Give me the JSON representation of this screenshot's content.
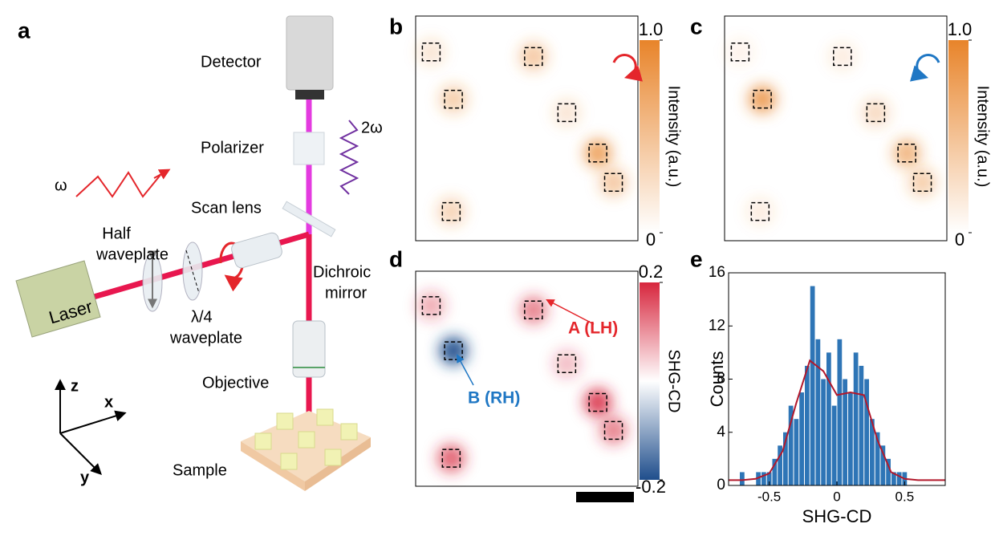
{
  "panel_labels": [
    "a",
    "b",
    "c",
    "d",
    "e"
  ],
  "setup": {
    "detector": "Detector",
    "polarizer": "Polarizer",
    "omega2": "2ω",
    "omega": "ω",
    "half_waveplate": [
      "Half",
      "waveplate"
    ],
    "scan_lens": "Scan lens",
    "dichroic_mirror": [
      "Dichroic",
      "mirror"
    ],
    "quarter_waveplate": [
      "λ/4",
      "waveplate"
    ],
    "laser": "Laser",
    "objective": "Objective",
    "sample": "Sample",
    "axes": [
      "z",
      "x",
      "y"
    ]
  },
  "maps": [
    {
      "colorbar_label": "Intensity (a.u.)",
      "clim": [
        0,
        1
      ],
      "cticks": [
        {
          "value": 1,
          "label": "1.0"
        },
        0
      ],
      "colors": [
        "#ffffff",
        "#e8842a"
      ],
      "spots": [
        0.2,
        0.45,
        0.4,
        0.2,
        0.75,
        0.45,
        0.35
      ]
    },
    {
      "colorbar_label": "Intensity (a.u.)",
      "clim": [
        0,
        1
      ],
      "cticks": [
        {
          "value": 1,
          "label": "1.0"
        },
        0
      ],
      "colors": [
        "#ffffff",
        "#e8842a"
      ],
      "spots": [
        0.1,
        0.15,
        0.8,
        0.3,
        0.6,
        0.4,
        0.15
      ]
    },
    {
      "colorbar_label": "SHG-CD",
      "clim": [
        -0.2,
        0.2
      ],
      "cticks": [
        0.2,
        -0.2
      ],
      "colors": [
        "#1f4e8c",
        "#ffffff",
        "#d7263d"
      ],
      "spots": [
        0.08,
        0.12,
        -0.2,
        0.06,
        0.18,
        0.12,
        0.15
      ],
      "annotations": [
        "A (LH)",
        "B (RH)"
      ]
    }
  ],
  "chart_data": {
    "type": "histogram",
    "xlabel": "SHG-CD",
    "ylabel": "Counts",
    "color": "#2e75b6",
    "bins": [
      -0.72,
      -0.68,
      -0.64,
      -0.6,
      -0.56,
      -0.52,
      -0.48,
      -0.44,
      -0.4,
      -0.36,
      -0.32,
      -0.28,
      -0.24,
      -0.2,
      -0.16,
      -0.12,
      -0.08,
      -0.04,
      0,
      0.04,
      0.08,
      0.12,
      0.16,
      0.2,
      0.24,
      0.28,
      0.32,
      0.36,
      0.4,
      0.44,
      0.48,
      0.52
    ],
    "counts": [
      1,
      0,
      0,
      1,
      1,
      1,
      2,
      3,
      4,
      6,
      5,
      7,
      9,
      15,
      11,
      8,
      10,
      6,
      11,
      8,
      7,
      10,
      9,
      8,
      5,
      4,
      3,
      2,
      1,
      1,
      1
    ],
    "fit": {
      "color": "#b2182b",
      "x": [
        -0.8,
        -0.7,
        -0.6,
        -0.5,
        -0.4,
        -0.3,
        -0.2,
        -0.1,
        0,
        0.1,
        0.2,
        0.3,
        0.4,
        0.5,
        0.6,
        0.7,
        0.8
      ],
      "values": [
        0.4,
        0.4,
        0.5,
        0.9,
        2.6,
        6.2,
        9.4,
        8.6,
        6.8,
        7.0,
        6.8,
        3.4,
        1.0,
        0.5,
        0.4,
        0.4,
        0.4
      ]
    },
    "xlim": [
      -0.8,
      0.8
    ],
    "ylim": [
      0,
      16
    ],
    "xticks": [
      -0.5,
      0,
      0.5
    ],
    "yticks": [
      0,
      4,
      8,
      12,
      16
    ]
  }
}
